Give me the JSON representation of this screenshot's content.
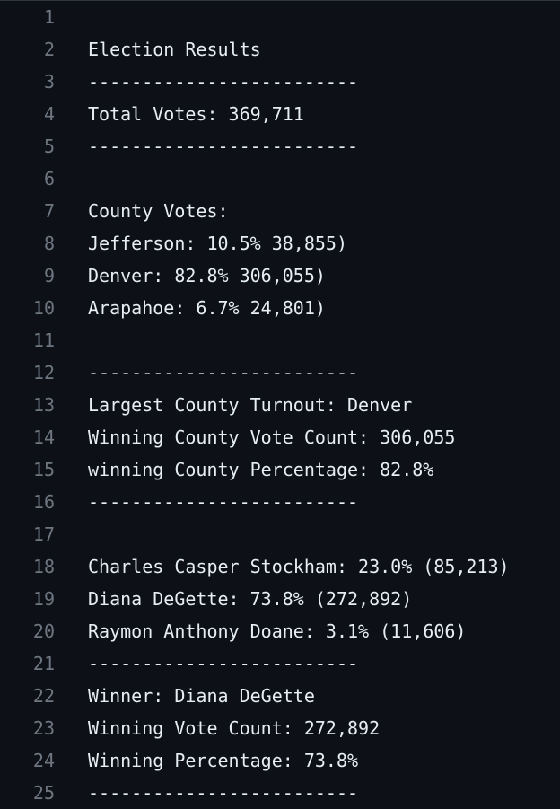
{
  "file": {
    "lines": [
      {
        "number": "1",
        "text": ""
      },
      {
        "number": "2",
        "text": "Election Results"
      },
      {
        "number": "3",
        "text": "-------------------------"
      },
      {
        "number": "4",
        "text": "Total Votes: 369,711"
      },
      {
        "number": "5",
        "text": "-------------------------"
      },
      {
        "number": "6",
        "text": ""
      },
      {
        "number": "7",
        "text": "County Votes:"
      },
      {
        "number": "8",
        "text": "Jefferson: 10.5% 38,855)"
      },
      {
        "number": "9",
        "text": "Denver: 82.8% 306,055)"
      },
      {
        "number": "10",
        "text": "Arapahoe: 6.7% 24,801)"
      },
      {
        "number": "11",
        "text": ""
      },
      {
        "number": "12",
        "text": "-------------------------"
      },
      {
        "number": "13",
        "text": "Largest County Turnout: Denver"
      },
      {
        "number": "14",
        "text": "Winning County Vote Count: 306,055"
      },
      {
        "number": "15",
        "text": "winning County Percentage: 82.8%"
      },
      {
        "number": "16",
        "text": "-------------------------"
      },
      {
        "number": "17",
        "text": ""
      },
      {
        "number": "18",
        "text": "Charles Casper Stockham: 23.0% (85,213)"
      },
      {
        "number": "19",
        "text": "Diana DeGette: 73.8% (272,892)"
      },
      {
        "number": "20",
        "text": "Raymon Anthony Doane: 3.1% (11,606)"
      },
      {
        "number": "21",
        "text": "-------------------------"
      },
      {
        "number": "22",
        "text": "Winner: Diana DeGette"
      },
      {
        "number": "23",
        "text": "Winning Vote Count: 272,892"
      },
      {
        "number": "24",
        "text": "Winning Percentage: 73.8%"
      },
      {
        "number": "25",
        "text": "-------------------------"
      }
    ]
  },
  "colors": {
    "background": "#0d1117",
    "line_number": "#6e7681",
    "text": "#e6edf3"
  }
}
